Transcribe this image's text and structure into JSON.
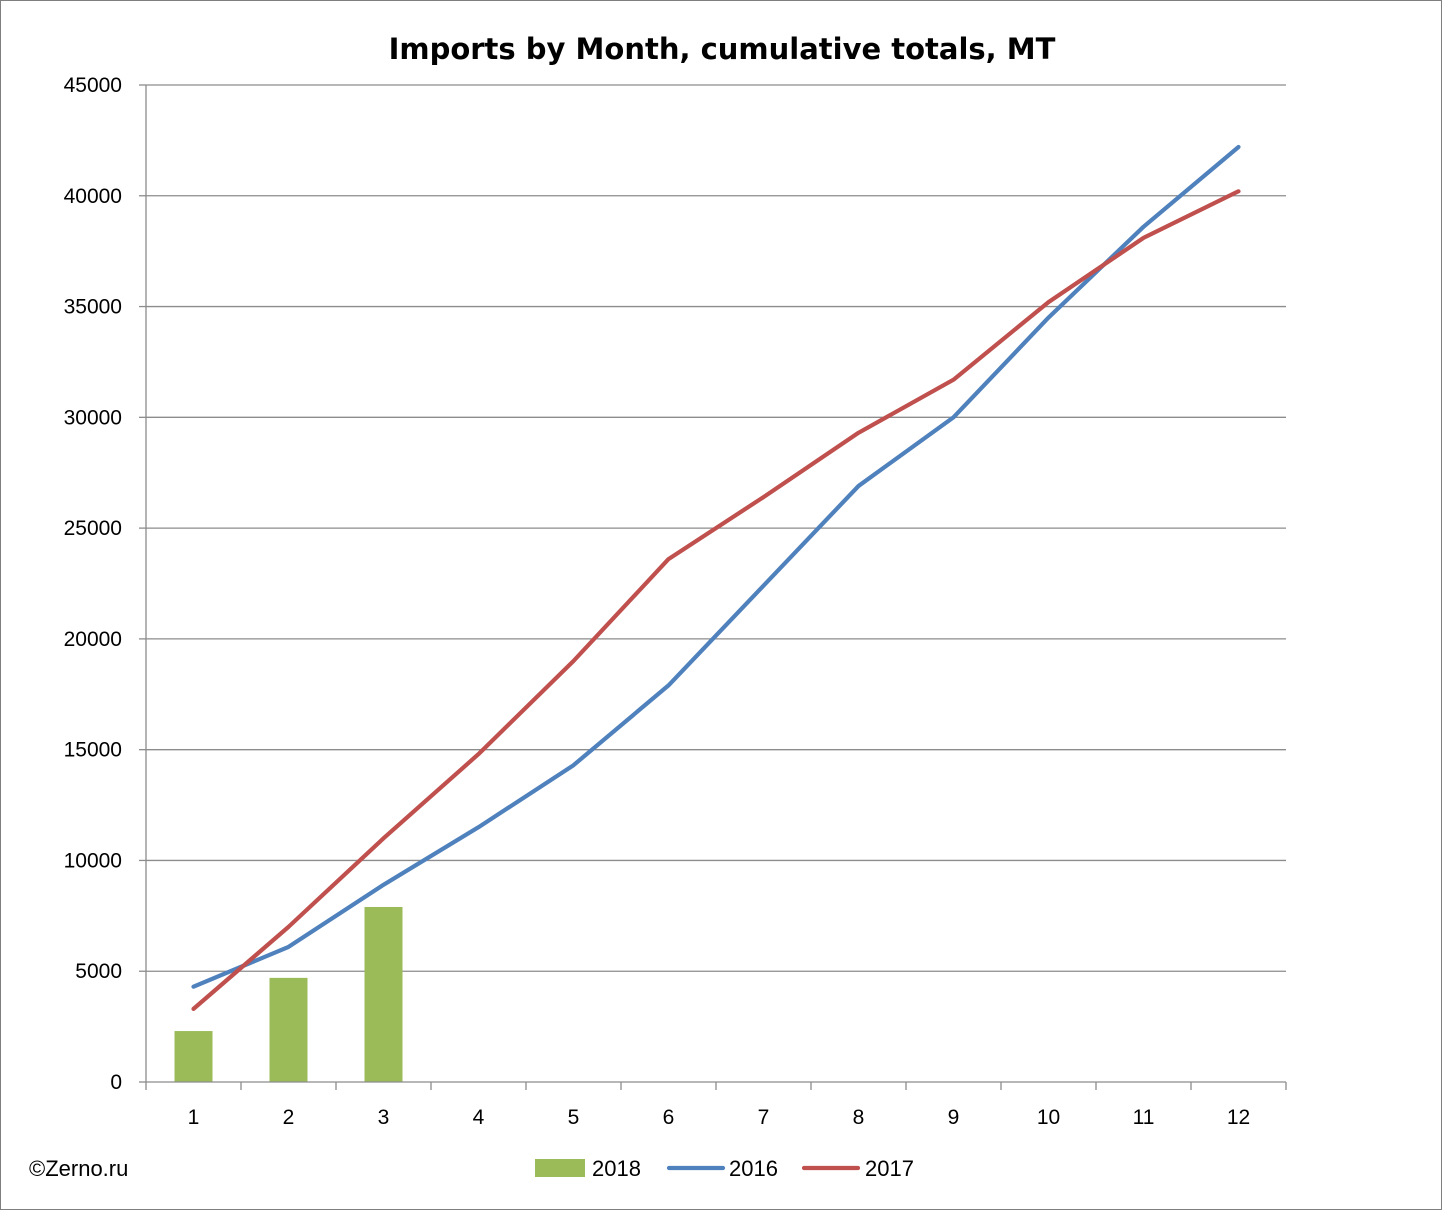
{
  "chart_data": {
    "type": "bar+line",
    "title": "Imports by Month, cumulative totals, MT",
    "xlabel": "",
    "ylabel": "",
    "categories": [
      "1",
      "2",
      "3",
      "4",
      "5",
      "6",
      "7",
      "8",
      "9",
      "10",
      "11",
      "12"
    ],
    "ylim": [
      0,
      45000
    ],
    "yticks": [
      0,
      5000,
      10000,
      15000,
      20000,
      25000,
      30000,
      35000,
      40000,
      45000
    ],
    "grid": true,
    "legend_position": "bottom",
    "series": [
      {
        "name": "2018",
        "kind": "bar",
        "color": "#9bbb59",
        "values": [
          2300,
          4700,
          7900,
          null,
          null,
          null,
          null,
          null,
          null,
          null,
          null,
          null
        ]
      },
      {
        "name": "2016",
        "kind": "line",
        "color": "#4f81bd",
        "values": [
          4300,
          6100,
          8900,
          11500,
          14300,
          17900,
          22400,
          26900,
          30000,
          34500,
          38600,
          42200
        ]
      },
      {
        "name": "2017",
        "kind": "line",
        "color": "#c0504d",
        "values": [
          3300,
          7000,
          11000,
          14800,
          19000,
          23600,
          26400,
          29300,
          31700,
          35200,
          38100,
          40200
        ]
      }
    ]
  },
  "credit": "©Zerno.ru"
}
